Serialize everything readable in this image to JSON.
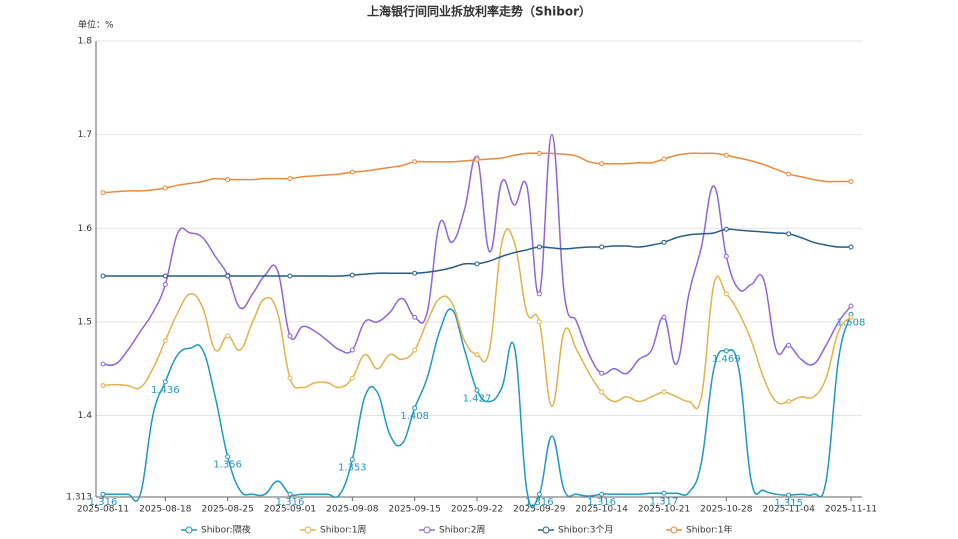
{
  "chart_data": {
    "type": "line",
    "title": "上海银行间同业拆放利率走势（Shibor）",
    "y_unit": "单位：%",
    "categories": [
      "2025-08-11",
      null,
      null,
      null,
      null,
      "2025-08-18",
      null,
      null,
      null,
      null,
      "2025-08-25",
      null,
      null,
      null,
      null,
      "2025-09-01",
      null,
      null,
      null,
      null,
      "2025-09-08",
      null,
      null,
      null,
      null,
      "2025-09-15",
      null,
      null,
      null,
      null,
      "2025-09-22",
      null,
      null,
      null,
      null,
      "2025-09-29",
      null,
      null,
      null,
      null,
      "2025-10-14",
      null,
      null,
      null,
      null,
      "2025-10-21",
      null,
      null,
      null,
      null,
      "2025-10-28",
      null,
      null,
      null,
      null,
      "2025-11-04",
      null,
      null,
      null,
      null,
      "2025-11-11"
    ],
    "ylim": [
      1.313,
      1.8
    ],
    "yticks": [
      1.313,
      1.4,
      1.5,
      1.6,
      1.7,
      1.8
    ],
    "grid": true,
    "legend": "bottom",
    "series": [
      {
        "name": "Shibor:隔夜",
        "color": "#1f97c4",
        "data_labels": true,
        "values": [
          1.316,
          1.316,
          1.316,
          1.316,
          1.4,
          1.436,
          1.465,
          1.472,
          1.47,
          1.42,
          1.356,
          1.32,
          1.316,
          1.316,
          1.33,
          1.316,
          1.316,
          1.316,
          1.316,
          1.316,
          1.353,
          1.42,
          1.425,
          1.38,
          1.37,
          1.408,
          1.44,
          1.49,
          1.513,
          1.47,
          1.427,
          1.415,
          1.43,
          1.473,
          1.32,
          1.316,
          1.378,
          1.32,
          1.316,
          1.314,
          1.316,
          1.316,
          1.316,
          1.316,
          1.317,
          1.317,
          1.317,
          1.318,
          1.35,
          1.45,
          1.469,
          1.45,
          1.33,
          1.32,
          1.316,
          1.315,
          1.316,
          1.316,
          1.33,
          1.46,
          1.508
        ]
      },
      {
        "name": "Shibor:1周",
        "color": "#e3b14b",
        "values": [
          1.432,
          1.433,
          1.432,
          1.43,
          1.45,
          1.48,
          1.51,
          1.53,
          1.515,
          1.47,
          1.485,
          1.47,
          1.5,
          1.525,
          1.51,
          1.44,
          1.43,
          1.435,
          1.435,
          1.43,
          1.44,
          1.465,
          1.45,
          1.465,
          1.46,
          1.47,
          1.5,
          1.525,
          1.52,
          1.48,
          1.465,
          1.47,
          1.585,
          1.585,
          1.51,
          1.5,
          1.41,
          1.49,
          1.47,
          1.445,
          1.425,
          1.415,
          1.42,
          1.415,
          1.42,
          1.425,
          1.42,
          1.415,
          1.42,
          1.54,
          1.53,
          1.51,
          1.48,
          1.44,
          1.415,
          1.415,
          1.42,
          1.42,
          1.44,
          1.49,
          1.505
        ]
      },
      {
        "name": "Shibor:2周",
        "color": "#8e65da",
        "values": [
          1.455,
          1.455,
          1.47,
          1.49,
          1.51,
          1.54,
          1.595,
          1.595,
          1.59,
          1.57,
          1.55,
          1.515,
          1.53,
          1.55,
          1.555,
          1.485,
          1.495,
          1.49,
          1.48,
          1.47,
          1.47,
          1.5,
          1.5,
          1.51,
          1.525,
          1.505,
          1.51,
          1.605,
          1.585,
          1.62,
          1.675,
          1.575,
          1.65,
          1.625,
          1.645,
          1.53,
          1.7,
          1.53,
          1.5,
          1.465,
          1.445,
          1.45,
          1.445,
          1.46,
          1.47,
          1.505,
          1.455,
          1.53,
          1.58,
          1.645,
          1.57,
          1.535,
          1.54,
          1.545,
          1.47,
          1.475,
          1.46,
          1.455,
          1.475,
          1.5,
          1.517
        ]
      },
      {
        "name": "Shibor:3个月",
        "color": "#275d8c",
        "values": [
          1.549,
          1.549,
          1.549,
          1.549,
          1.549,
          1.549,
          1.549,
          1.549,
          1.549,
          1.549,
          1.549,
          1.549,
          1.549,
          1.549,
          1.549,
          1.549,
          1.549,
          1.549,
          1.549,
          1.549,
          1.55,
          1.551,
          1.552,
          1.552,
          1.552,
          1.552,
          1.553,
          1.555,
          1.558,
          1.562,
          1.562,
          1.565,
          1.57,
          1.574,
          1.577,
          1.58,
          1.579,
          1.578,
          1.579,
          1.58,
          1.58,
          1.581,
          1.581,
          1.58,
          1.582,
          1.585,
          1.59,
          1.593,
          1.594,
          1.595,
          1.599,
          1.598,
          1.597,
          1.596,
          1.595,
          1.594,
          1.59,
          1.585,
          1.582,
          1.58,
          1.58
        ]
      },
      {
        "name": "Shibor:1年",
        "color": "#ec883a",
        "values": [
          1.638,
          1.639,
          1.64,
          1.64,
          1.641,
          1.643,
          1.646,
          1.648,
          1.65,
          1.653,
          1.652,
          1.652,
          1.652,
          1.653,
          1.653,
          1.653,
          1.655,
          1.656,
          1.657,
          1.658,
          1.66,
          1.661,
          1.663,
          1.665,
          1.667,
          1.671,
          1.671,
          1.671,
          1.671,
          1.672,
          1.673,
          1.674,
          1.675,
          1.678,
          1.68,
          1.68,
          1.68,
          1.679,
          1.677,
          1.671,
          1.669,
          1.669,
          1.669,
          1.67,
          1.67,
          1.674,
          1.678,
          1.68,
          1.68,
          1.68,
          1.678,
          1.675,
          1.672,
          1.668,
          1.663,
          1.658,
          1.655,
          1.652,
          1.65,
          1.65,
          1.65
        ]
      }
    ]
  }
}
